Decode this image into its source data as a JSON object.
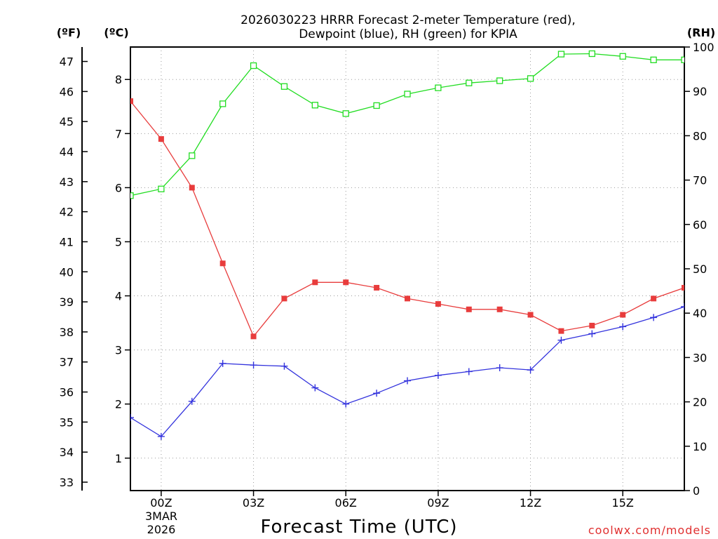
{
  "chart_data": {
    "type": "line",
    "title": "2026030223 HRRR Forecast 2-meter Temperature (red),",
    "subtitle": "Dewpoint (blue), RH (green) for KPIA",
    "xlabel": "Forecast Time (UTC)",
    "credit": "coolwx.com/models",
    "left_axis_unit": "(ºF)",
    "inner_axis_unit": "(ºC)",
    "right_axis_unit": "(RH)",
    "x_ticks": [
      {
        "label": "00Z",
        "hour": 0
      },
      {
        "label": "03Z",
        "hour": 3
      },
      {
        "label": "06Z",
        "hour": 6
      },
      {
        "label": "09Z",
        "hour": 9
      },
      {
        "label": "12Z",
        "hour": 12
      },
      {
        "label": "15Z",
        "hour": 15
      }
    ],
    "date_label_line1": "3MAR",
    "date_label_line2": "2026",
    "xlim": [
      -1,
      17
    ],
    "ylim_c": [
      0.4,
      8.6
    ],
    "ylim_rh": [
      0,
      100
    ],
    "f_ticks": [
      "33",
      "34",
      "35",
      "36",
      "37",
      "38",
      "39",
      "40",
      "41",
      "42",
      "43",
      "44",
      "45",
      "46",
      "47"
    ],
    "c_ticks": [
      "1",
      "2",
      "3",
      "4",
      "5",
      "6",
      "7",
      "8"
    ],
    "rh_ticks": [
      "0",
      "10",
      "20",
      "30",
      "40",
      "50",
      "60",
      "70",
      "80",
      "90",
      "100"
    ],
    "x": [
      -1,
      0,
      1,
      2,
      3,
      4,
      5,
      6,
      7,
      8,
      9,
      10,
      11,
      12,
      13,
      14,
      15,
      16,
      17
    ],
    "series": [
      {
        "name": "Temperature",
        "axis": "C",
        "color": "#e83c3c",
        "marker": "filled-square",
        "values": [
          7.6,
          6.9,
          6.0,
          4.6,
          3.25,
          3.95,
          4.25,
          4.25,
          4.15,
          3.95,
          3.85,
          3.75,
          3.75,
          3.65,
          3.35,
          3.45,
          3.65,
          3.95,
          4.15
        ]
      },
      {
        "name": "Dewpoint",
        "axis": "C",
        "color": "#3333dd",
        "marker": "plus",
        "values": [
          1.75,
          1.4,
          2.05,
          2.75,
          2.72,
          2.7,
          2.3,
          2.0,
          2.2,
          2.43,
          2.53,
          2.6,
          2.67,
          2.63,
          3.18,
          3.3,
          3.43,
          3.6,
          3.8
        ]
      },
      {
        "name": "RH",
        "axis": "RH",
        "color": "#22dd22",
        "marker": "open-square",
        "values": [
          66.5,
          68,
          75.5,
          87.2,
          95.8,
          91.1,
          86.9,
          85,
          86.8,
          89.4,
          90.8,
          91.9,
          92.4,
          92.9,
          98.4,
          98.5,
          97.9,
          97.1,
          97.1
        ]
      }
    ]
  }
}
